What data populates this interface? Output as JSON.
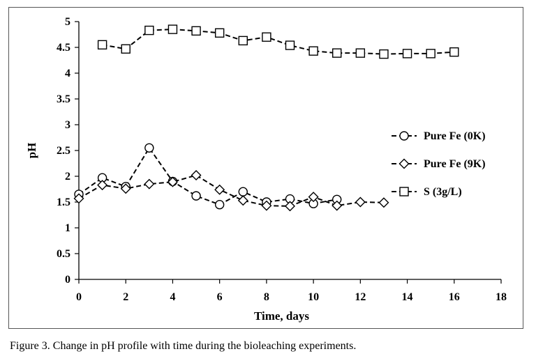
{
  "chart_data": {
    "type": "line",
    "title": "",
    "xlabel": "Time, days",
    "ylabel": "pH",
    "xlim": [
      0,
      18
    ],
    "ylim": [
      0,
      5
    ],
    "xticks": [
      0,
      2,
      4,
      6,
      8,
      10,
      12,
      14,
      16,
      18
    ],
    "yticks": [
      0,
      0.5,
      1,
      1.5,
      2,
      2.5,
      3,
      3.5,
      4,
      4.5,
      5
    ],
    "grid": false,
    "legend_position": "right",
    "series": [
      {
        "name": "Pure Fe (0K)",
        "marker": "circle",
        "x": [
          0,
          1,
          2,
          3,
          4,
          5,
          6,
          7,
          8,
          9,
          10,
          11
        ],
        "y": [
          1.65,
          1.97,
          1.8,
          2.55,
          1.9,
          1.62,
          1.45,
          1.7,
          1.5,
          1.56,
          1.47,
          1.55
        ]
      },
      {
        "name": "Pure Fe (9K)",
        "marker": "diamond",
        "x": [
          0,
          1,
          2,
          3,
          4,
          5,
          6,
          7,
          8,
          9,
          10,
          11,
          12,
          13
        ],
        "y": [
          1.57,
          1.83,
          1.76,
          1.85,
          1.89,
          2.02,
          1.74,
          1.53,
          1.43,
          1.42,
          1.6,
          1.43,
          1.5,
          1.49
        ]
      },
      {
        "name": "S (3g/L)",
        "marker": "square",
        "x": [
          1,
          2,
          3,
          4,
          5,
          6,
          7,
          8,
          9,
          10,
          11,
          12,
          13,
          14,
          15,
          16
        ],
        "y": [
          4.55,
          4.47,
          4.83,
          4.85,
          4.82,
          4.78,
          4.63,
          4.7,
          4.54,
          4.43,
          4.39,
          4.39,
          4.37,
          4.38,
          4.38,
          4.41
        ]
      }
    ]
  },
  "caption": "Figure 3. Change in pH profile with time during the bioleaching experiments."
}
